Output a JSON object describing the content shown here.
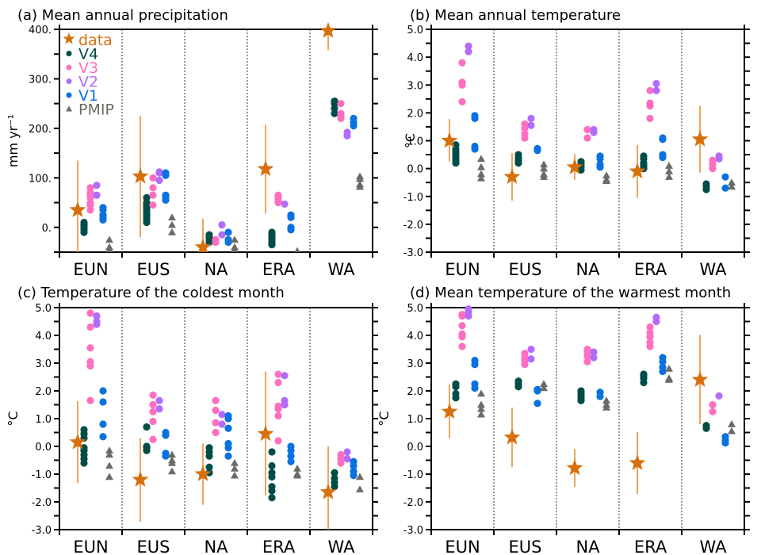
{
  "chart_data": [
    {
      "id": "a",
      "type": "scatter",
      "title": "(a) Mean annual precipitation",
      "ylabel": "mm yr⁻¹",
      "ylim": [
        -50,
        400
      ],
      "yticks": [
        0,
        100,
        200,
        300,
        400
      ],
      "ytick_labels": [
        "0.",
        "100.",
        "200.",
        "300.",
        "400."
      ],
      "yminor_step": 50,
      "categories": [
        "EUN",
        "EUS",
        "NA",
        "ERA",
        "WA"
      ],
      "legend": true,
      "data": [
        {
          "star": 35,
          "err": [
            -60,
            135
          ],
          "V4": [
            -10,
            -5,
            0,
            5,
            10
          ],
          "V3": [
            35,
            45,
            50,
            60,
            65,
            70,
            80
          ],
          "V2": [
            65,
            85
          ],
          "V1": [
            15,
            20,
            25,
            35,
            40
          ],
          "PMIP": [
            -25,
            -40,
            -45
          ]
        },
        {
          "star": 103,
          "err": [
            -20,
            225
          ],
          "V4": [
            10,
            15,
            20,
            25,
            30,
            35,
            40,
            45,
            50,
            60
          ],
          "V3": [
            45,
            65,
            80,
            100
          ],
          "V2": [
            95,
            110,
            112
          ],
          "V1": [
            55,
            60,
            65,
            105,
            110
          ],
          "PMIP": [
            20,
            5,
            -10
          ]
        },
        {
          "star": -40,
          "err": [
            -65,
            18
          ],
          "V4": [
            -15,
            -20,
            -25,
            -30
          ],
          "V3": [
            -25,
            -30
          ],
          "V2": [
            5,
            -15
          ],
          "V1": [
            -10,
            -25,
            -30
          ],
          "PMIP": [
            -25,
            -40,
            -45
          ]
        },
        {
          "star": 118,
          "err": [
            28,
            207
          ],
          "V4": [
            -10,
            -15,
            -20,
            -25,
            -30,
            -35
          ],
          "V3": [
            50,
            55,
            60,
            65
          ],
          "V2": [
            47
          ],
          "V1": [
            -5,
            0,
            20,
            25
          ],
          "PMIP": [
            -48
          ]
        },
        {
          "star": 397,
          "err": [
            358,
            410
          ],
          "V4": [
            230,
            240,
            250,
            255
          ],
          "V3": [
            220,
            225,
            230,
            250
          ],
          "V2": [
            185,
            192
          ],
          "V1": [
            205,
            212,
            220
          ],
          "PMIP": [
            82,
            87,
            98,
            103
          ]
        }
      ]
    },
    {
      "id": "b",
      "type": "scatter",
      "title": "(b) Mean annual temperature",
      "ylabel": "°C",
      "ylim": [
        -3,
        5
      ],
      "yticks": [
        -3,
        -2,
        -1,
        0,
        1,
        2,
        3,
        4,
        5
      ],
      "ytick_labels": [
        "-3.0",
        "-2.0",
        "-1.0",
        "0.0",
        "1.0",
        "2.0",
        "3.0",
        "4.0",
        "5.0"
      ],
      "yminor_step": 0.5,
      "categories": [
        "EUN",
        "EUS",
        "NA",
        "ERA",
        "WA"
      ],
      "legend": false,
      "data": [
        {
          "star": 1.0,
          "err": [
            0.25,
            1.78
          ],
          "V4": [
            0.2,
            0.3,
            0.4,
            0.5,
            0.6,
            0.7,
            0.85
          ],
          "V3": [
            2.4,
            3.0,
            3.1,
            3.8
          ],
          "V2": [
            4.2,
            4.4
          ],
          "V1": [
            0.7,
            0.8,
            1.8,
            1.9
          ],
          "PMIP": [
            0.35,
            0.05,
            -0.2,
            -0.35
          ]
        },
        {
          "star": -0.3,
          "err": [
            -1.15,
            0.55
          ],
          "V4": [
            0.2,
            0.3,
            0.4,
            0.5
          ],
          "V3": [
            1.1,
            1.25,
            1.45,
            1.6
          ],
          "V2": [
            1.55,
            1.8
          ],
          "V1": [
            0.65,
            0.72
          ],
          "PMIP": [
            0.15,
            0.0,
            -0.2,
            -0.3
          ]
        },
        {
          "star": 0.05,
          "err": [
            -0.4,
            0.52
          ],
          "V4": [
            -0.05,
            0.05,
            0.15,
            0.25
          ],
          "V3": [
            1.1,
            1.4
          ],
          "V2": [
            1.3,
            1.4
          ],
          "V1": [
            0.05,
            0.15,
            0.35,
            0.45
          ],
          "PMIP": [
            -0.25,
            -0.4,
            -0.45
          ]
        },
        {
          "star": -0.1,
          "err": [
            -1.05,
            0.85
          ],
          "V4": [
            0.0,
            0.1,
            0.2,
            0.35,
            0.45
          ],
          "V3": [
            1.8,
            2.25,
            2.35,
            2.8
          ],
          "V2": [
            2.8,
            3.05
          ],
          "V1": [
            0.4,
            0.5,
            1.05,
            1.1
          ],
          "PMIP": [
            0.1,
            -0.1,
            -0.3
          ]
        },
        {
          "star": 1.05,
          "err": [
            -0.15,
            2.25
          ],
          "V4": [
            -0.55,
            -0.65,
            -0.75
          ],
          "V3": [
            0.0,
            0.15,
            0.3
          ],
          "V2": [
            0.35,
            0.45
          ],
          "V1": [
            -0.3,
            -0.7
          ],
          "PMIP": [
            -0.5,
            -0.65
          ]
        }
      ]
    },
    {
      "id": "c",
      "type": "scatter",
      "title": "(c) Temperature of the coldest month",
      "ylabel": "°C",
      "ylim": [
        -3,
        5
      ],
      "yticks": [
        -3,
        -2,
        -1,
        0,
        1,
        2,
        3,
        4,
        5
      ],
      "ytick_labels": [
        "-3.0",
        "-2.0",
        "-1.0",
        "0.0",
        "1.0",
        "2.0",
        "3.0",
        "4.0",
        "5.0"
      ],
      "yminor_step": 0.5,
      "categories": [
        "EUN",
        "EUS",
        "NA",
        "ERA",
        "WA"
      ],
      "legend": false,
      "data": [
        {
          "star": 0.15,
          "err": [
            -1.32,
            1.63
          ],
          "V4": [
            -0.6,
            -0.45,
            -0.3,
            -0.15,
            -0.05,
            0.3,
            0.45,
            0.6
          ],
          "V3": [
            1.65,
            2.9,
            3.05,
            3.55,
            4.3,
            4.8
          ],
          "V2": [
            4.4,
            4.5,
            4.7
          ],
          "V1": [
            0.35,
            0.8,
            1.6,
            2.0
          ],
          "PMIP": [
            -0.15,
            -0.3,
            -0.7,
            -1.1
          ]
        },
        {
          "star": -1.2,
          "err": [
            -2.72,
            0.3
          ],
          "V4": [
            -0.15,
            -0.05,
            0.0,
            0.7
          ],
          "V3": [
            0.25,
            0.9,
            1.25,
            1.5,
            1.85
          ],
          "V2": [
            1.35,
            1.65
          ],
          "V1": [
            -0.35,
            -0.25,
            0.4,
            0.5
          ],
          "PMIP": [
            -0.3,
            -0.5,
            -0.6,
            -0.9
          ]
        },
        {
          "star": -1.0,
          "err": [
            -2.1,
            0.1
          ],
          "V4": [
            -0.95,
            -0.75,
            -0.35,
            -0.2,
            -0.05
          ],
          "V3": [
            0.5,
            0.85,
            1.3,
            1.65
          ],
          "V2": [
            0.8,
            1.15
          ],
          "V1": [
            -0.35,
            -0.05,
            0.1,
            0.65,
            1.0,
            1.1
          ],
          "PMIP": [
            -0.6,
            -0.8,
            -1.05
          ]
        },
        {
          "star": 0.45,
          "err": [
            -1.78,
            2.7
          ],
          "V4": [
            -1.85,
            -1.6,
            -1.45,
            -1.1,
            -0.95,
            -0.7,
            -0.2
          ],
          "V3": [
            0.2,
            1.1,
            1.35,
            1.45,
            2.3,
            2.6
          ],
          "V2": [
            1.5,
            1.65,
            2.55
          ],
          "V1": [
            -0.55,
            -0.35,
            -0.15,
            0.0
          ],
          "PMIP": [
            -0.8,
            -1.0,
            -1.05
          ]
        },
        {
          "star": -1.65,
          "err": [
            -3.0,
            0.0
          ],
          "V4": [
            -1.45,
            -1.3,
            -1.15,
            -0.95
          ],
          "V3": [
            -0.6,
            -0.45,
            -0.3
          ],
          "V2": [
            -0.2,
            -0.45
          ],
          "V1": [
            -1.05,
            -0.9,
            -0.7,
            -0.55
          ],
          "PMIP": [
            -1.1,
            -1.55
          ]
        }
      ]
    },
    {
      "id": "d",
      "type": "scatter",
      "title": "(d) Mean temperature of the warmest month",
      "ylabel": "°C",
      "ylim": [
        -3,
        5
      ],
      "yticks": [
        -3,
        -2,
        -1,
        0,
        1,
        2,
        3,
        4,
        5
      ],
      "ytick_labels": [
        "-3.0",
        "-2.0",
        "-1.0",
        "0.0",
        "1.0",
        "2.0",
        "3.0",
        "4.0",
        "5.0"
      ],
      "yminor_step": 0.5,
      "categories": [
        "EUN",
        "EUS",
        "NA",
        "ERA",
        "WA"
      ],
      "legend": false,
      "data": [
        {
          "star": 1.25,
          "err": [
            0.3,
            2.23
          ],
          "V4": [
            1.75,
            1.9,
            2.15,
            2.25
          ],
          "V3": [
            3.6,
            3.95,
            4.05,
            4.35,
            4.7,
            4.75
          ],
          "V2": [
            4.7,
            4.85,
            4.95
          ],
          "V1": [
            2.1,
            2.25,
            2.95,
            3.1
          ],
          "PMIP": [
            1.15,
            1.35,
            1.5,
            1.9
          ]
        },
        {
          "star": 0.32,
          "err": [
            -0.75,
            1.4
          ],
          "V4": [
            2.15,
            2.25,
            2.35
          ],
          "V3": [
            2.95,
            3.1,
            3.2,
            3.35
          ],
          "V2": [
            3.15,
            3.5
          ],
          "V1": [
            1.55,
            2.0,
            2.05
          ],
          "PMIP": [
            2.1,
            2.25
          ]
        },
        {
          "star": -0.78,
          "err": [
            -1.45,
            -0.1
          ],
          "V4": [
            1.65,
            1.75,
            1.85,
            1.95,
            2.0
          ],
          "V3": [
            3.05,
            3.25,
            3.4,
            3.5
          ],
          "V2": [
            3.2,
            3.4
          ],
          "V1": [
            1.8,
            1.95
          ],
          "PMIP": [
            1.4,
            1.5,
            1.65
          ]
        },
        {
          "star": -0.6,
          "err": [
            -1.72,
            0.52
          ],
          "V4": [
            2.3,
            2.45,
            2.55,
            2.6
          ],
          "V3": [
            3.6,
            3.75,
            3.95,
            4.1,
            4.3
          ],
          "V2": [
            4.5,
            4.65
          ],
          "V1": [
            2.7,
            2.85,
            3.05,
            3.2
          ],
          "PMIP": [
            2.4,
            2.45,
            2.8
          ]
        },
        {
          "star": 2.4,
          "err": [
            0.8,
            4.02
          ],
          "V4": [
            0.65,
            0.75
          ],
          "V3": [
            1.25,
            1.5
          ],
          "V2": [
            1.82
          ],
          "V1": [
            0.12,
            0.22,
            0.35
          ],
          "PMIP": [
            0.55,
            0.8
          ]
        }
      ]
    }
  ],
  "legend": {
    "items": [
      {
        "key": "star",
        "label": "data",
        "color": "#d6700c",
        "marker": "star"
      },
      {
        "key": "V4",
        "label": "V4",
        "color": "#004d48",
        "marker": "circle"
      },
      {
        "key": "V3",
        "label": "V3",
        "color": "#ff6ebf",
        "marker": "circle"
      },
      {
        "key": "V2",
        "label": "V2",
        "color": "#b36bfa",
        "marker": "circle"
      },
      {
        "key": "V1",
        "label": "V1",
        "color": "#0a72e0",
        "marker": "circle"
      },
      {
        "key": "PMIP",
        "label": "PMIP",
        "color": "#6b6b66",
        "marker": "triangle"
      }
    ]
  },
  "colors": {
    "errorbar": "#ee9a4d",
    "star": "#d6700c",
    "V4": "#004d48",
    "V3": "#ff6ebf",
    "V2": "#b36bfa",
    "V1": "#0a72e0",
    "PMIP": "#6b6b66",
    "divider": "#555555"
  }
}
